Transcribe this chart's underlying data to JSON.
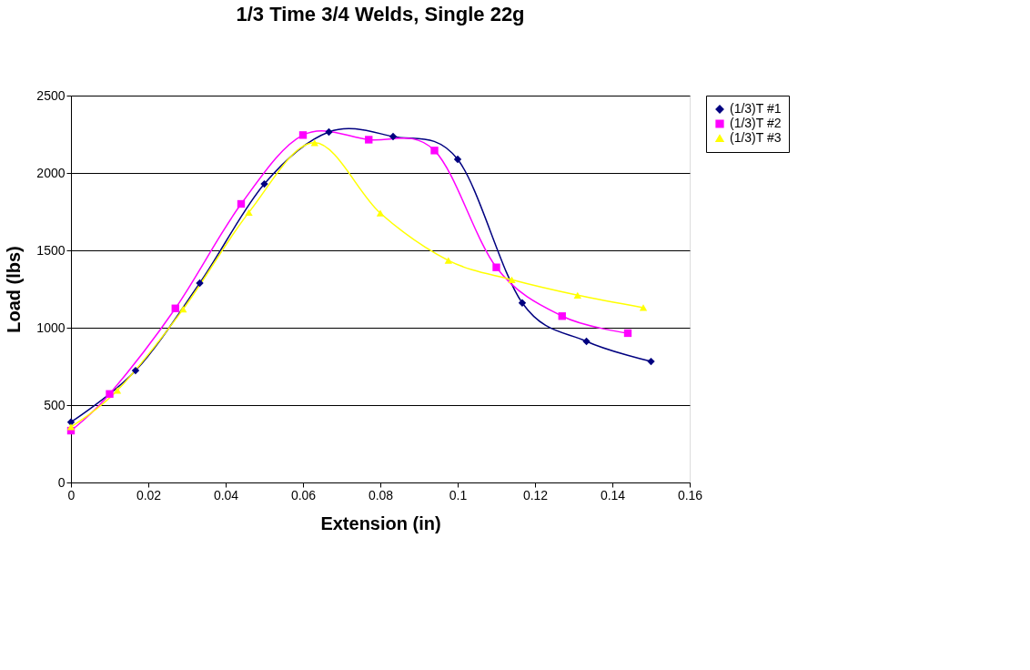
{
  "chart_data": {
    "type": "line",
    "title": "1/3 Time 3/4 Welds, Single 22g",
    "xlabel": "Extension (in)",
    "ylabel": "Load (lbs)",
    "xlim": [
      0,
      0.16
    ],
    "xticks": [
      0,
      0.02,
      0.04,
      0.06,
      0.08,
      0.1,
      0.12,
      0.14,
      0.16
    ],
    "ylim": [
      0,
      2500
    ],
    "yticks": [
      0,
      500,
      1000,
      1500,
      2000,
      2500
    ],
    "grid": "y",
    "legend": "right",
    "line_style": "solid",
    "series": [
      {
        "name": "(1/3)T #1",
        "color": "#000080",
        "marker": "diamond",
        "x": [
          0,
          0.0167,
          0.0333,
          0.05,
          0.0667,
          0.0833,
          0.1,
          0.1167,
          0.1333,
          0.15
        ],
        "values": [
          390,
          723,
          1288,
          1929,
          2265,
          2235,
          2088,
          1160,
          912,
          782
        ]
      },
      {
        "name": "(1/3)T #2",
        "color": "#ff00ff",
        "marker": "square",
        "x": [
          0,
          0.01,
          0.027,
          0.044,
          0.06,
          0.077,
          0.094,
          0.11,
          0.127,
          0.144
        ],
        "values": [
          335,
          572,
          1125,
          1800,
          2245,
          2215,
          2145,
          1390,
          1075,
          965
        ]
      },
      {
        "name": "(1/3)T #3",
        "color": "#ffff00",
        "marker": "triangle",
        "x": [
          0,
          0.012,
          0.029,
          0.046,
          0.063,
          0.08,
          0.0976,
          0.114,
          0.131,
          0.148
        ],
        "values": [
          360,
          595,
          1120,
          1745,
          2195,
          1740,
          1435,
          1310,
          1210,
          1130
        ]
      }
    ]
  }
}
